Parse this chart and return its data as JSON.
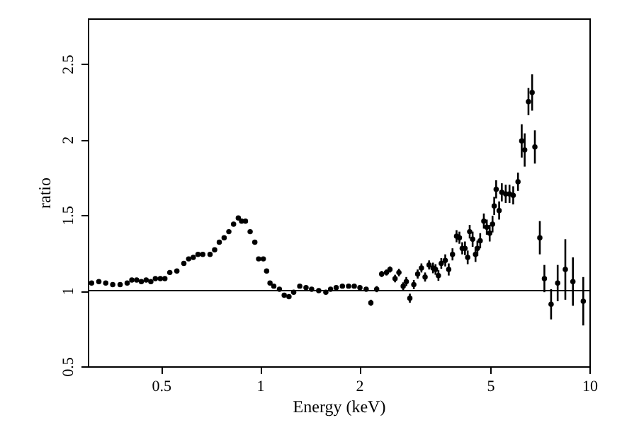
{
  "chart_data": {
    "type": "scatter",
    "xlabel": "Energy (keV)",
    "ylabel": "ratio",
    "log": "x",
    "xlim": [
      0.3,
      10
    ],
    "xticks": [
      0.5,
      1,
      2,
      5,
      10
    ],
    "ylim": [
      0.5,
      2.8
    ],
    "yticks": [
      0.5,
      1,
      1.5,
      2,
      2.5
    ],
    "grid": false,
    "marker": "circle",
    "ref_lines": [
      {
        "axis": "y",
        "value": 1,
        "color": "#000000"
      }
    ],
    "series": [
      {
        "color": "#000000",
        "x": [
          0.308,
          0.324,
          0.34,
          0.357,
          0.376,
          0.395,
          0.408,
          0.422,
          0.436,
          0.451,
          0.466,
          0.481,
          0.498,
          0.514,
          0.532,
          0.559,
          0.587,
          0.607,
          0.627,
          0.648,
          0.67,
          0.705,
          0.728,
          0.752,
          0.778,
          0.804,
          0.831,
          0.859,
          0.879,
          0.903,
          0.933,
          0.964,
          0.99,
          1.023,
          1.047,
          1.072,
          1.101,
          1.145,
          1.184,
          1.224,
          1.265,
          1.32,
          1.379,
          1.434,
          1.507,
          1.584,
          1.637,
          1.703,
          1.778,
          1.857,
          1.932,
          2.01,
          2.1,
          2.17,
          2.26,
          2.34,
          2.42,
          2.48,
          2.57,
          2.64,
          2.72,
          2.78,
          2.85,
          2.93,
          3.01,
          3.09,
          3.17,
          3.26,
          3.35,
          3.41,
          3.48,
          3.55,
          3.65,
          3.74,
          3.84,
          3.95,
          4.03,
          4.11,
          4.19,
          4.27,
          4.33,
          4.42,
          4.51,
          4.57,
          4.66,
          4.78,
          4.88,
          4.98,
          5.08,
          5.14,
          5.21,
          5.32,
          5.42,
          5.57,
          5.72,
          5.87,
          6.07,
          6.23,
          6.36,
          6.53,
          6.7,
          6.83,
          7.07,
          7.3,
          7.65,
          8.01,
          8.45,
          8.91,
          9.58
        ],
        "values": [
          1.05,
          1.06,
          1.05,
          1.04,
          1.04,
          1.05,
          1.07,
          1.07,
          1.06,
          1.07,
          1.06,
          1.08,
          1.08,
          1.08,
          1.12,
          1.13,
          1.18,
          1.21,
          1.22,
          1.24,
          1.24,
          1.24,
          1.27,
          1.32,
          1.35,
          1.39,
          1.44,
          1.48,
          1.46,
          1.46,
          1.39,
          1.32,
          1.21,
          1.21,
          1.13,
          1.05,
          1.03,
          1.01,
          0.97,
          0.96,
          0.99,
          1.03,
          1.02,
          1.01,
          1.0,
          0.99,
          1.01,
          1.02,
          1.03,
          1.03,
          1.03,
          1.02,
          1.01,
          0.92,
          1.01,
          1.11,
          1.12,
          1.14,
          1.08,
          1.12,
          1.03,
          1.06,
          0.95,
          1.04,
          1.11,
          1.15,
          1.09,
          1.17,
          1.15,
          1.14,
          1.1,
          1.18,
          1.2,
          1.14,
          1.24,
          1.36,
          1.35,
          1.28,
          1.28,
          1.22,
          1.39,
          1.34,
          1.24,
          1.28,
          1.33,
          1.46,
          1.42,
          1.38,
          1.44,
          1.56,
          1.67,
          1.53,
          1.65,
          1.64,
          1.64,
          1.63,
          1.72,
          1.99,
          1.93,
          2.25,
          2.31,
          1.95,
          1.35,
          1.08,
          0.91,
          1.05,
          1.14,
          1.06,
          0.93
        ],
        "errors": [
          null,
          null,
          null,
          null,
          null,
          null,
          null,
          null,
          null,
          null,
          null,
          null,
          null,
          null,
          null,
          null,
          null,
          null,
          null,
          null,
          null,
          null,
          null,
          null,
          null,
          null,
          null,
          null,
          null,
          null,
          null,
          null,
          null,
          null,
          null,
          null,
          null,
          null,
          null,
          null,
          null,
          null,
          null,
          null,
          null,
          null,
          null,
          null,
          null,
          null,
          null,
          null,
          null,
          0.02,
          0.02,
          0.02,
          0.02,
          0.02,
          0.025,
          0.025,
          0.025,
          0.03,
          0.03,
          0.03,
          0.03,
          0.03,
          0.03,
          0.03,
          0.035,
          0.035,
          0.035,
          0.035,
          0.04,
          0.04,
          0.04,
          0.04,
          0.04,
          0.04,
          0.045,
          0.045,
          0.045,
          0.05,
          0.05,
          0.05,
          0.05,
          0.05,
          0.05,
          0.055,
          0.055,
          0.06,
          0.06,
          0.06,
          0.06,
          0.06,
          0.06,
          0.06,
          0.06,
          0.11,
          0.11,
          0.09,
          0.12,
          0.11,
          0.11,
          0.09,
          0.1,
          0.12,
          0.2,
          0.16,
          0.16
        ]
      }
    ]
  }
}
